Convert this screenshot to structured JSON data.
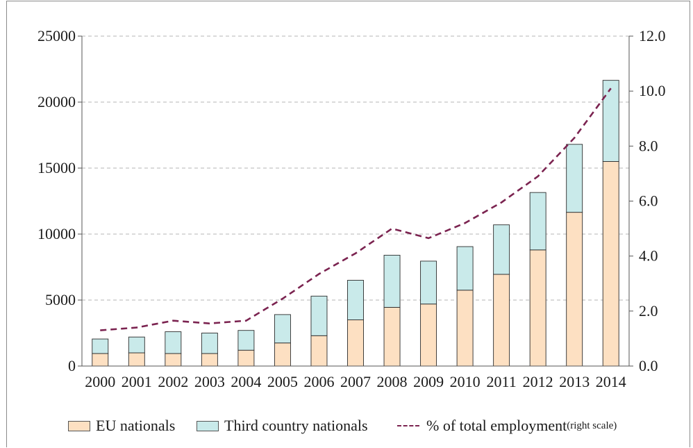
{
  "chart_data": {
    "type": "bar",
    "stacked": true,
    "categories": [
      "2000",
      "2001",
      "2002",
      "2003",
      "2004",
      "2005",
      "2006",
      "2007",
      "2008",
      "2009",
      "2010",
      "2011",
      "2012",
      "2013",
      "2014"
    ],
    "series": [
      {
        "name": "EU nationals",
        "color": "#fde0c2",
        "values": [
          950,
          1000,
          950,
          950,
          1200,
          1750,
          2300,
          3500,
          4450,
          4700,
          5750,
          6950,
          8800,
          11650,
          15500
        ]
      },
      {
        "name": "Third country nationals",
        "color": "#c9eaea",
        "values": [
          1100,
          1200,
          1650,
          1550,
          1500,
          2150,
          3000,
          3000,
          3950,
          3250,
          3300,
          3750,
          4350,
          5150,
          6150
        ]
      }
    ],
    "line_series": {
      "name": "% of total employment",
      "name_suffix": "(right scale)",
      "color": "#7b2350",
      "axis": "right",
      "values": [
        1.3,
        1.4,
        1.65,
        1.55,
        1.65,
        2.45,
        3.35,
        4.1,
        5.0,
        4.65,
        5.2,
        5.95,
        6.9,
        8.3,
        10.1
      ]
    },
    "y_left": {
      "ylim": [
        0,
        25000
      ],
      "ticks": [
        "0",
        "5000",
        "10000",
        "15000",
        "20000",
        "25000"
      ]
    },
    "y_right": {
      "ylim": [
        0,
        12
      ],
      "ticks": [
        "0.0",
        "2.0",
        "4.0",
        "6.0",
        "8.0",
        "10.0",
        "12.0"
      ]
    },
    "grid": true,
    "legend_position": "bottom",
    "title": "",
    "xlabel": "",
    "ylabel": ""
  }
}
